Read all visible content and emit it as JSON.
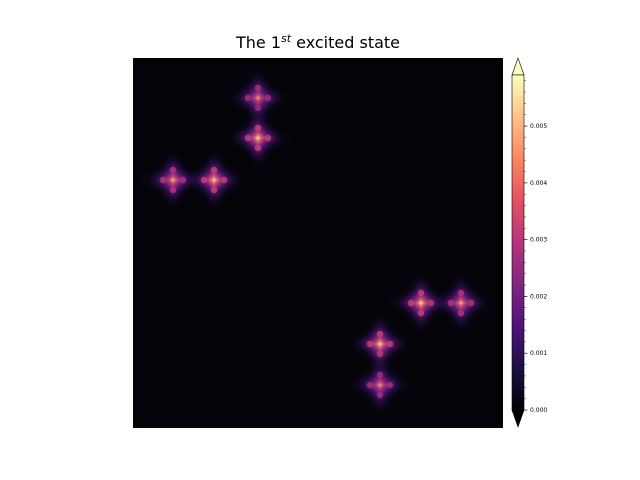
{
  "chart_data": {
    "type": "heatmap",
    "title": {
      "prefix": "The 1",
      "superscript": "st",
      "suffix": " excited state"
    },
    "colormap": "magma",
    "colors": {
      "background": "#040308",
      "colorbar_stops": [
        "#000004",
        "#1c1044",
        "#4f127b",
        "#812581",
        "#b5367a",
        "#e55064",
        "#fb8761",
        "#fec287",
        "#fcfdbf"
      ]
    },
    "axes_visible": false,
    "colorbar": {
      "ticks": [
        0.0,
        0.001,
        0.002,
        0.003,
        0.004,
        0.005
      ],
      "tick_labels": [
        "0.000",
        "0.001",
        "0.002",
        "0.003",
        "0.004",
        "0.005"
      ],
      "vmin": 0.0,
      "vmax": 0.0059,
      "extend": "both",
      "placement": "right"
    },
    "grid_extent": {
      "x": [
        0,
        37
      ],
      "y": [
        0,
        37
      ]
    },
    "blobs": [
      {
        "x": 12.5,
        "y": 4.0,
        "value": 0.0048
      },
      {
        "x": 12.5,
        "y": 8.0,
        "value": 0.0058
      },
      {
        "x": 4.0,
        "y": 12.2,
        "value": 0.0052
      },
      {
        "x": 8.1,
        "y": 12.2,
        "value": 0.0058
      },
      {
        "x": 28.8,
        "y": 24.5,
        "value": 0.0058
      },
      {
        "x": 32.8,
        "y": 24.5,
        "value": 0.0052
      },
      {
        "x": 24.7,
        "y": 28.6,
        "value": 0.0058
      },
      {
        "x": 24.7,
        "y": 32.7,
        "value": 0.0048
      }
    ]
  }
}
